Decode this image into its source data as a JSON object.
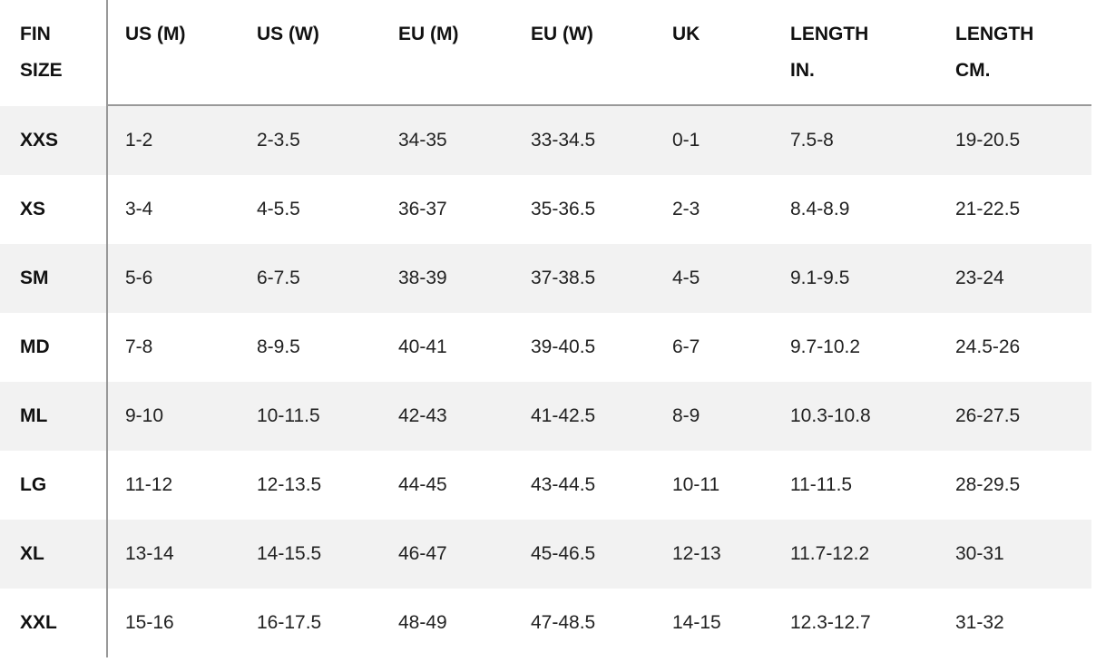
{
  "table": {
    "header": [
      [
        "FIN",
        "SIZE"
      ],
      [
        "US (M)"
      ],
      [
        "US (W)"
      ],
      [
        "EU (M)"
      ],
      [
        "EU (W)"
      ],
      [
        "UK"
      ],
      [
        "LENGTH",
        "IN."
      ],
      [
        "LENGTH",
        "CM."
      ]
    ],
    "rows": [
      [
        "XXS",
        "1-2",
        "2-3.5",
        "34-35",
        "33-34.5",
        "0-1",
        "7.5-8",
        "19-20.5"
      ],
      [
        "XS",
        "3-4",
        "4-5.5",
        "36-37",
        "35-36.5",
        "2-3",
        "8.4-8.9",
        "21-22.5"
      ],
      [
        "SM",
        "5-6",
        "6-7.5",
        "38-39",
        "37-38.5",
        "4-5",
        "9.1-9.5",
        "23-24"
      ],
      [
        "MD",
        "7-8",
        "8-9.5",
        "40-41",
        "39-40.5",
        "6-7",
        "9.7-10.2",
        "24.5-26"
      ],
      [
        "ML",
        "9-10",
        "10-11.5",
        "42-43",
        "41-42.5",
        "8-9",
        "10.3-10.8",
        "26-27.5"
      ],
      [
        "LG",
        "11-12",
        "12-13.5",
        "44-45",
        "43-44.5",
        "10-11",
        "11-11.5",
        "28-29.5"
      ],
      [
        "XL",
        "13-14",
        "14-15.5",
        "46-47",
        "45-46.5",
        "12-13",
        "11.7-12.2",
        "30-31"
      ],
      [
        "XXL",
        "15-16",
        "16-17.5",
        "48-49",
        "47-48.5",
        "14-15",
        "12.3-12.7",
        "31-32"
      ]
    ]
  }
}
